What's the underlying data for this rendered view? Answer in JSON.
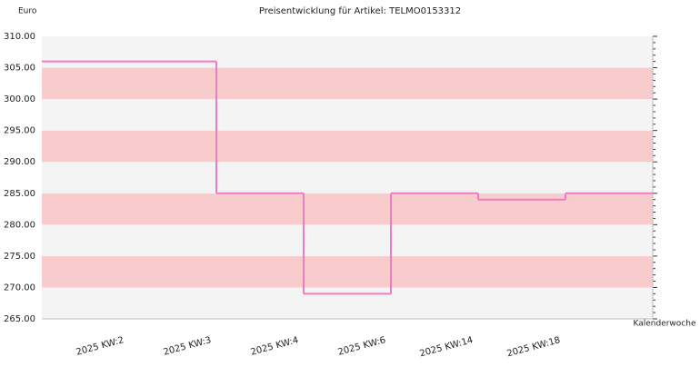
{
  "chart_data": {
    "type": "step",
    "title": "Preisentwicklung für Artikel: TELMO0153312",
    "y_label": "Euro",
    "x_label": "Kalenderwoche",
    "categories": [
      "2025 KW:2",
      "2025 KW:3",
      "2025 KW:4",
      "2025 KW:6",
      "2025 KW:14",
      "2025 KW:18"
    ],
    "values": [
      306,
      285,
      269,
      285,
      284,
      285
    ],
    "color": "#f07cc4",
    "ylim": [
      265,
      310
    ],
    "yticks": [
      {
        "value": 265,
        "label": "265.00"
      },
      {
        "value": 270,
        "label": "270.00"
      },
      {
        "value": 275,
        "label": "275.00"
      },
      {
        "value": 280,
        "label": "280.00"
      },
      {
        "value": 285,
        "label": "285.00"
      },
      {
        "value": 290,
        "label": "290.00"
      },
      {
        "value": 295,
        "label": "295.00"
      },
      {
        "value": 300,
        "label": "300.00"
      },
      {
        "value": 305,
        "label": "305.00"
      },
      {
        "value": 310,
        "label": "310.00"
      }
    ]
  }
}
